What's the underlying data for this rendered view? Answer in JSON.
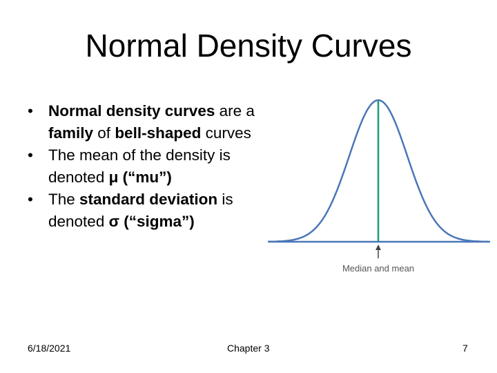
{
  "slide": {
    "title": "Normal Density Curves",
    "bullets": [
      {
        "marker": "•",
        "runs": [
          {
            "text": "Normal density curves",
            "bold": true
          },
          {
            "text": " are a ",
            "bold": false
          },
          {
            "text": "family",
            "bold": true
          },
          {
            "text": " of ",
            "bold": false
          },
          {
            "text": "bell-shaped",
            "bold": true
          },
          {
            "text": " curves",
            "bold": false
          }
        ]
      },
      {
        "marker": "•",
        "runs": [
          {
            "text": "The mean of the density is denoted ",
            "bold": false
          },
          {
            "text": "μ (“mu”)",
            "bold": true
          }
        ]
      },
      {
        "marker": "•",
        "runs": [
          {
            "text": "The ",
            "bold": false
          },
          {
            "text": "standard deviation",
            "bold": true
          },
          {
            "text": " is denoted ",
            "bold": false
          },
          {
            "text": "σ (“sigma”)",
            "bold": true
          }
        ]
      }
    ]
  },
  "figure": {
    "annotation": "Median and mean",
    "curve_color": "#4a76b8",
    "center_line_color": "#1f9a7a",
    "baseline_color": "#4a76b8",
    "arrow_color": "#444444"
  },
  "footer": {
    "date": "6/18/2021",
    "chapter": "Chapter 3",
    "page": "7"
  }
}
